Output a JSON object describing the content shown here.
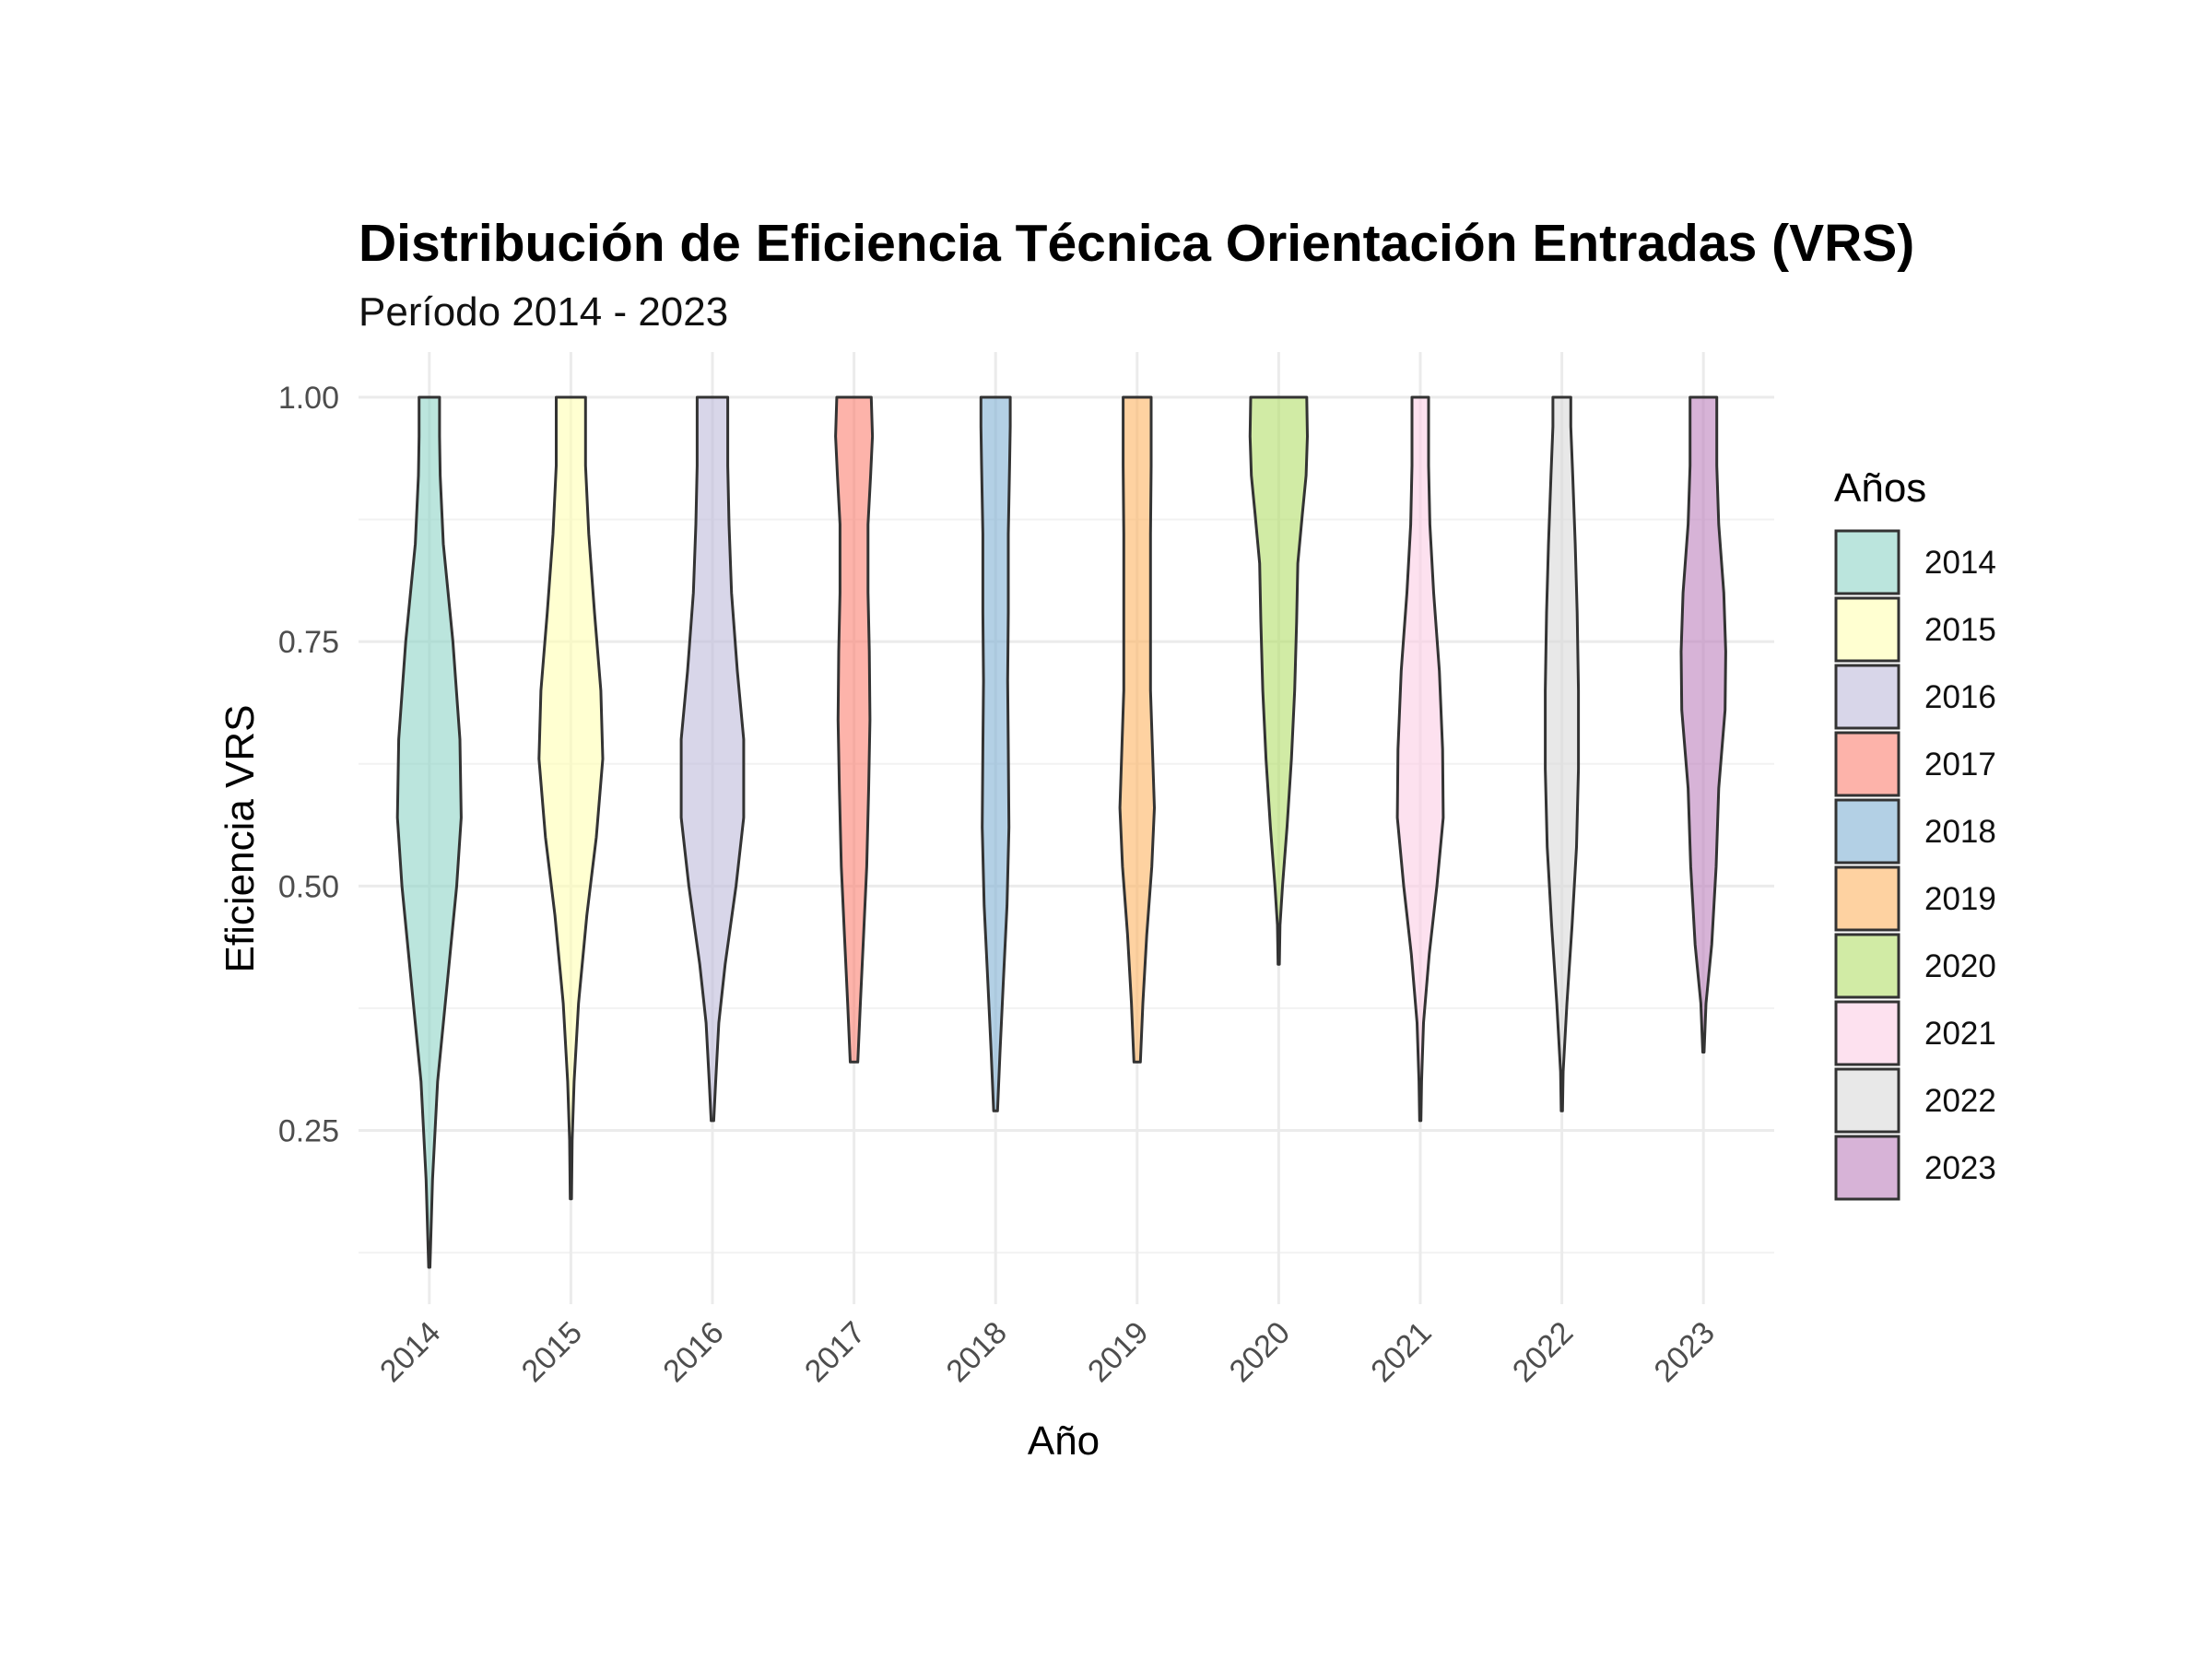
{
  "chart_data": {
    "type": "violin",
    "title": "Distribución de Eficiencia Técnica Orientación Entradas (VRS)",
    "subtitle": "Período 2014 - 2023",
    "xlabel": "Año",
    "ylabel": "Eficiencia VRS",
    "ylim": [
      0.1,
      1.05
    ],
    "y_ticks": [
      "0.25",
      "0.50",
      "0.75",
      "1.00"
    ],
    "y_tick_values": [
      0.25,
      0.5,
      0.75,
      1.0
    ],
    "grid": true,
    "legend": {
      "title": "Años",
      "position": "right"
    },
    "categories": [
      "2014",
      "2015",
      "2016",
      "2017",
      "2018",
      "2019",
      "2020",
      "2021",
      "2022",
      "2023"
    ],
    "series": [
      {
        "name": "2014",
        "color": "#8DD3C7",
        "min": 0.11,
        "max": 1.0,
        "density": [
          [
            0.11,
            0.01
          ],
          [
            0.2,
            0.05
          ],
          [
            0.3,
            0.13
          ],
          [
            0.4,
            0.28
          ],
          [
            0.5,
            0.43
          ],
          [
            0.57,
            0.5
          ],
          [
            0.65,
            0.48
          ],
          [
            0.75,
            0.37
          ],
          [
            0.85,
            0.22
          ],
          [
            0.92,
            0.17
          ],
          [
            0.96,
            0.16
          ],
          [
            1.0,
            0.16
          ]
        ]
      },
      {
        "name": "2015",
        "color": "#FFFFB3",
        "min": 0.18,
        "max": 1.0,
        "density": [
          [
            0.18,
            0.01
          ],
          [
            0.24,
            0.02
          ],
          [
            0.3,
            0.05
          ],
          [
            0.38,
            0.12
          ],
          [
            0.47,
            0.25
          ],
          [
            0.55,
            0.4
          ],
          [
            0.63,
            0.5
          ],
          [
            0.7,
            0.47
          ],
          [
            0.78,
            0.37
          ],
          [
            0.86,
            0.28
          ],
          [
            0.93,
            0.23
          ],
          [
            1.0,
            0.23
          ]
        ]
      },
      {
        "name": "2016",
        "color": "#BEBADA",
        "min": 0.26,
        "max": 1.0,
        "density": [
          [
            0.26,
            0.02
          ],
          [
            0.3,
            0.05
          ],
          [
            0.36,
            0.1
          ],
          [
            0.42,
            0.2
          ],
          [
            0.5,
            0.37
          ],
          [
            0.57,
            0.49
          ],
          [
            0.65,
            0.49
          ],
          [
            0.72,
            0.39
          ],
          [
            0.8,
            0.3
          ],
          [
            0.87,
            0.26
          ],
          [
            0.93,
            0.24
          ],
          [
            1.0,
            0.24
          ]
        ]
      },
      {
        "name": "2017",
        "color": "#FB8072",
        "min": 0.32,
        "max": 1.0,
        "density": [
          [
            0.32,
            0.06
          ],
          [
            0.38,
            0.1
          ],
          [
            0.45,
            0.15
          ],
          [
            0.52,
            0.2
          ],
          [
            0.6,
            0.23
          ],
          [
            0.67,
            0.25
          ],
          [
            0.74,
            0.24
          ],
          [
            0.8,
            0.22
          ],
          [
            0.87,
            0.22
          ],
          [
            0.92,
            0.26
          ],
          [
            0.96,
            0.29
          ],
          [
            1.0,
            0.27
          ]
        ]
      },
      {
        "name": "2018",
        "color": "#80B1D3",
        "min": 0.27,
        "max": 1.0,
        "density": [
          [
            0.27,
            0.03
          ],
          [
            0.33,
            0.07
          ],
          [
            0.4,
            0.12
          ],
          [
            0.48,
            0.18
          ],
          [
            0.56,
            0.21
          ],
          [
            0.64,
            0.2
          ],
          [
            0.71,
            0.19
          ],
          [
            0.78,
            0.2
          ],
          [
            0.86,
            0.2
          ],
          [
            0.93,
            0.22
          ],
          [
            0.97,
            0.23
          ],
          [
            1.0,
            0.23
          ]
        ]
      },
      {
        "name": "2019",
        "color": "#FDB462",
        "min": 0.32,
        "max": 1.0,
        "density": [
          [
            0.32,
            0.05
          ],
          [
            0.38,
            0.09
          ],
          [
            0.45,
            0.15
          ],
          [
            0.52,
            0.23
          ],
          [
            0.58,
            0.27
          ],
          [
            0.64,
            0.24
          ],
          [
            0.7,
            0.21
          ],
          [
            0.78,
            0.21
          ],
          [
            0.86,
            0.21
          ],
          [
            0.93,
            0.22
          ],
          [
            1.0,
            0.22
          ]
        ]
      },
      {
        "name": "2020",
        "color": "#B3DE69",
        "min": 0.42,
        "max": 1.0,
        "density": [
          [
            0.42,
            0.01
          ],
          [
            0.46,
            0.02
          ],
          [
            0.5,
            0.06
          ],
          [
            0.56,
            0.13
          ],
          [
            0.63,
            0.2
          ],
          [
            0.7,
            0.25
          ],
          [
            0.77,
            0.28
          ],
          [
            0.83,
            0.3
          ],
          [
            0.88,
            0.37
          ],
          [
            0.92,
            0.43
          ],
          [
            0.96,
            0.45
          ],
          [
            1.0,
            0.44
          ]
        ]
      },
      {
        "name": "2021",
        "color": "#FCCDE5",
        "min": 0.26,
        "max": 1.0,
        "density": [
          [
            0.26,
            0.01
          ],
          [
            0.3,
            0.02
          ],
          [
            0.36,
            0.05
          ],
          [
            0.43,
            0.14
          ],
          [
            0.5,
            0.26
          ],
          [
            0.57,
            0.36
          ],
          [
            0.64,
            0.35
          ],
          [
            0.72,
            0.3
          ],
          [
            0.8,
            0.21
          ],
          [
            0.87,
            0.15
          ],
          [
            0.93,
            0.13
          ],
          [
            1.0,
            0.13
          ]
        ]
      },
      {
        "name": "2022",
        "color": "#D9D9D9",
        "min": 0.27,
        "max": 1.0,
        "density": [
          [
            0.27,
            0.01
          ],
          [
            0.31,
            0.02
          ],
          [
            0.38,
            0.08
          ],
          [
            0.46,
            0.16
          ],
          [
            0.54,
            0.23
          ],
          [
            0.62,
            0.26
          ],
          [
            0.7,
            0.26
          ],
          [
            0.78,
            0.24
          ],
          [
            0.85,
            0.21
          ],
          [
            0.92,
            0.17
          ],
          [
            0.97,
            0.14
          ],
          [
            1.0,
            0.14
          ]
        ]
      },
      {
        "name": "2023",
        "color": "#BC80BD",
        "min": 0.33,
        "max": 1.0,
        "density": [
          [
            0.33,
            0.01
          ],
          [
            0.38,
            0.04
          ],
          [
            0.44,
            0.13
          ],
          [
            0.52,
            0.2
          ],
          [
            0.6,
            0.24
          ],
          [
            0.68,
            0.34
          ],
          [
            0.74,
            0.35
          ],
          [
            0.8,
            0.32
          ],
          [
            0.87,
            0.24
          ],
          [
            0.93,
            0.21
          ],
          [
            1.0,
            0.21
          ]
        ]
      }
    ]
  }
}
